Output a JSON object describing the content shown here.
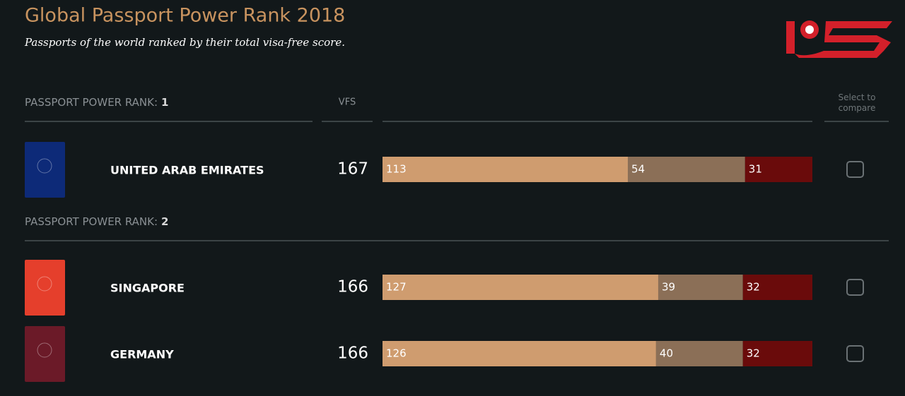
{
  "header": {
    "title": "Global Passport Power Rank 2018",
    "subtitle": "Passports of the world ranked by their total visa-free score."
  },
  "columns": {
    "vfs": "VFS",
    "compare": "Select to compare"
  },
  "rank_label": "PASSPORT POWER RANK:",
  "segment_colors": [
    "#cf9c6f",
    "#8b6f57",
    "#6a0b0b"
  ],
  "groups": [
    {
      "rank": 1,
      "rows": [
        {
          "country": "UNITED ARAB EMIRATES",
          "passport_color": "#0d2a78",
          "vfs": 167,
          "segments": [
            113,
            54,
            31
          ]
        }
      ]
    },
    {
      "rank": 2,
      "rows": [
        {
          "country": "SINGAPORE",
          "passport_color": "#e53f2c",
          "vfs": 166,
          "segments": [
            127,
            39,
            32
          ]
        },
        {
          "country": "GERMANY",
          "passport_color": "#6b1a28",
          "vfs": 166,
          "segments": [
            126,
            40,
            32
          ]
        }
      ]
    }
  ]
}
